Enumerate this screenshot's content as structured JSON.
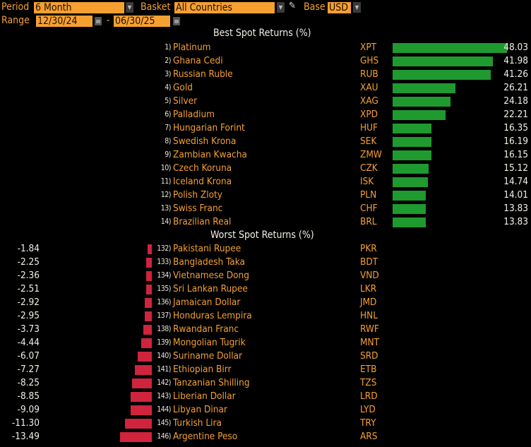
{
  "toolbar": {
    "period_label": "Period",
    "period_value": "6 Month",
    "basket_label": "Basket",
    "basket_value": "All Countries",
    "base_label": "Base",
    "base_value": "USD",
    "range_label": "Range",
    "range_start": "12/30/24",
    "range_sep": "-",
    "range_end": "06/30/25"
  },
  "best_title": "Best Spot Returns (%)",
  "worst_title": "Worst Spot Returns (%)",
  "colors": {
    "best": "#1f9a2e",
    "worst": "#d0243d"
  },
  "best": [
    {
      "rank": "1)",
      "name": "Platinum",
      "code": "XPT",
      "value": 48.03
    },
    {
      "rank": "2)",
      "name": "Ghana Cedi",
      "code": "GHS",
      "value": 41.98
    },
    {
      "rank": "3)",
      "name": "Russian Ruble",
      "code": "RUB",
      "value": 41.26
    },
    {
      "rank": "4)",
      "name": "Gold",
      "code": "XAU",
      "value": 26.21
    },
    {
      "rank": "5)",
      "name": "Silver",
      "code": "XAG",
      "value": 24.18
    },
    {
      "rank": "6)",
      "name": "Palladium",
      "code": "XPD",
      "value": 22.21
    },
    {
      "rank": "7)",
      "name": "Hungarian Forint",
      "code": "HUF",
      "value": 16.35
    },
    {
      "rank": "8)",
      "name": "Swedish Krona",
      "code": "SEK",
      "value": 16.19
    },
    {
      "rank": "9)",
      "name": "Zambian Kwacha",
      "code": "ZMW",
      "value": 16.15
    },
    {
      "rank": "10)",
      "name": "Czech Koruna",
      "code": "CZK",
      "value": 15.12
    },
    {
      "rank": "11)",
      "name": "Iceland Krona",
      "code": "ISK",
      "value": 14.74
    },
    {
      "rank": "12)",
      "name": "Polish Zloty",
      "code": "PLN",
      "value": 14.01
    },
    {
      "rank": "13)",
      "name": "Swiss Franc",
      "code": "CHF",
      "value": 13.83
    },
    {
      "rank": "14)",
      "name": "Brazilian Real",
      "code": "BRL",
      "value": 13.83
    }
  ],
  "worst": [
    {
      "rank": "132)",
      "name": "Pakistani Rupee",
      "code": "PKR",
      "value": -1.84
    },
    {
      "rank": "133)",
      "name": "Bangladesh Taka",
      "code": "BDT",
      "value": -2.25
    },
    {
      "rank": "134)",
      "name": "Vietnamese Dong",
      "code": "VND",
      "value": -2.36
    },
    {
      "rank": "135)",
      "name": "Sri Lankan Rupee",
      "code": "LKR",
      "value": -2.51
    },
    {
      "rank": "136)",
      "name": "Jamaican Dollar",
      "code": "JMD",
      "value": -2.92
    },
    {
      "rank": "137)",
      "name": "Honduras Lempira",
      "code": "HNL",
      "value": -2.95
    },
    {
      "rank": "138)",
      "name": "Rwandan Franc",
      "code": "RWF",
      "value": -3.73
    },
    {
      "rank": "139)",
      "name": "Mongolian Tugrik",
      "code": "MNT",
      "value": -4.44
    },
    {
      "rank": "140)",
      "name": "Suriname Dollar",
      "code": "SRD",
      "value": -6.07
    },
    {
      "rank": "141)",
      "name": "Ethiopian Birr",
      "code": "ETB",
      "value": -7.27
    },
    {
      "rank": "142)",
      "name": "Tanzanian Shilling",
      "code": "TZS",
      "value": -8.25
    },
    {
      "rank": "143)",
      "name": "Liberian Dollar",
      "code": "LRD",
      "value": -8.85
    },
    {
      "rank": "144)",
      "name": "Libyan Dinar",
      "code": "LYD",
      "value": -9.09
    },
    {
      "rank": "145)",
      "name": "Turkish Lira",
      "code": "TRY",
      "value": -11.3
    },
    {
      "rank": "146)",
      "name": "Argentine Peso",
      "code": "ARS",
      "value": -13.49
    }
  ]
}
